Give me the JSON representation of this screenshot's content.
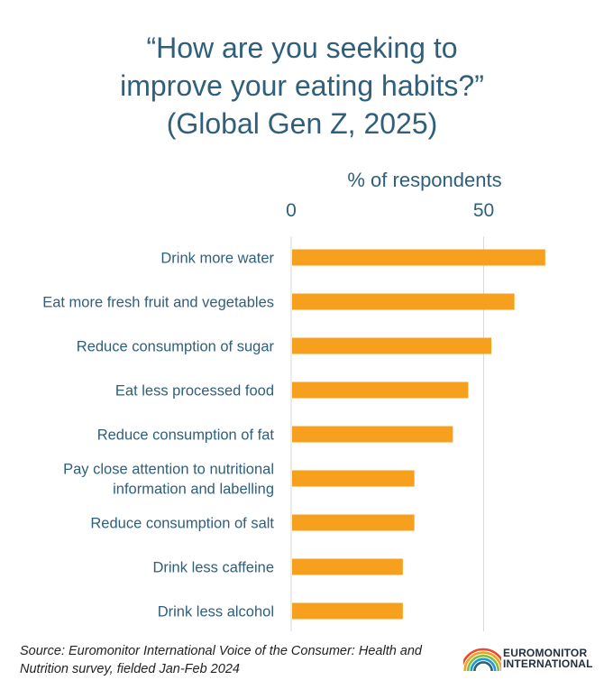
{
  "title_lines": [
    "“How are you seeking to",
    "improve your eating habits?”",
    "(Global Gen Z, 2025)"
  ],
  "chart_data": {
    "type": "bar",
    "orientation": "horizontal",
    "xlabel": "% of respondents",
    "xlim": [
      0,
      80
    ],
    "ticks": [
      0,
      50
    ],
    "grid": true,
    "bar_color": "#f7a01e",
    "categories": [
      [
        "Drink more water"
      ],
      [
        "Eat more fresh fruit and vegetables"
      ],
      [
        "Reduce consumption of sugar"
      ],
      [
        "Eat less processed food"
      ],
      [
        "Reduce consumption of fat"
      ],
      [
        "Pay close attention to nutritional",
        "information and labelling"
      ],
      [
        "Reduce consumption of salt"
      ],
      [
        "Drink less caffeine"
      ],
      [
        "Drink less alcohol"
      ]
    ],
    "values": [
      66,
      58,
      52,
      46,
      42,
      32,
      32,
      29,
      29
    ]
  },
  "footer": {
    "source_label": "Source:",
    "source_text": " Euromonitor International Voice of the Consumer: Health and Nutrition survey, fielded Jan-Feb 2024"
  },
  "logo": {
    "line1": "EUROMONITOR",
    "line2": "INTERNATIONAL",
    "colors": [
      "#e84b2c",
      "#f7a01e",
      "#7fbf3f",
      "#1b9bd7",
      "#2f5f7a"
    ]
  }
}
